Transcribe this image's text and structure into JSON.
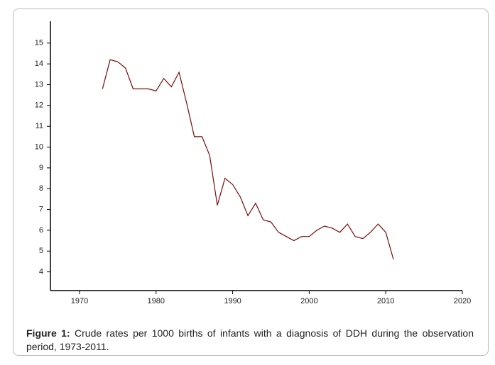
{
  "chart_data": {
    "type": "line",
    "x": [
      1973,
      1974,
      1975,
      1976,
      1977,
      1978,
      1979,
      1980,
      1981,
      1982,
      1983,
      1984,
      1985,
      1986,
      1987,
      1988,
      1989,
      1990,
      1991,
      1992,
      1993,
      1994,
      1995,
      1996,
      1997,
      1998,
      1999,
      2000,
      2001,
      2002,
      2003,
      2004,
      2005,
      2006,
      2007,
      2008,
      2009,
      2010,
      2011
    ],
    "series": [
      {
        "color": "#7b0a0a",
        "values": [
          12.8,
          14.2,
          14.1,
          13.8,
          12.8,
          12.8,
          12.8,
          12.7,
          13.3,
          12.9,
          13.6,
          12.1,
          10.5,
          10.5,
          9.6,
          7.2,
          8.5,
          8.2,
          7.6,
          6.7,
          7.3,
          6.5,
          6.4,
          5.9,
          5.7,
          5.5,
          5.7,
          5.7,
          6.0,
          6.2,
          6.1,
          5.9,
          6.3,
          5.7,
          5.6,
          5.9,
          6.3,
          5.9,
          4.6
        ]
      }
    ],
    "xlim": [
      1966.2,
      2020
    ],
    "xticks": [
      1970,
      1980,
      1990,
      2000,
      2010,
      2020
    ],
    "ylim": [
      3.1,
      16.05
    ],
    "yticks": [
      4,
      5,
      6,
      7,
      8,
      9,
      10,
      11,
      12,
      13,
      14,
      15
    ]
  },
  "caption": {
    "label": "Figure 1:",
    "text": "Crude rates per 1000 births of infants with a diagnosis of DDH during the observation period, 1973-2011."
  }
}
